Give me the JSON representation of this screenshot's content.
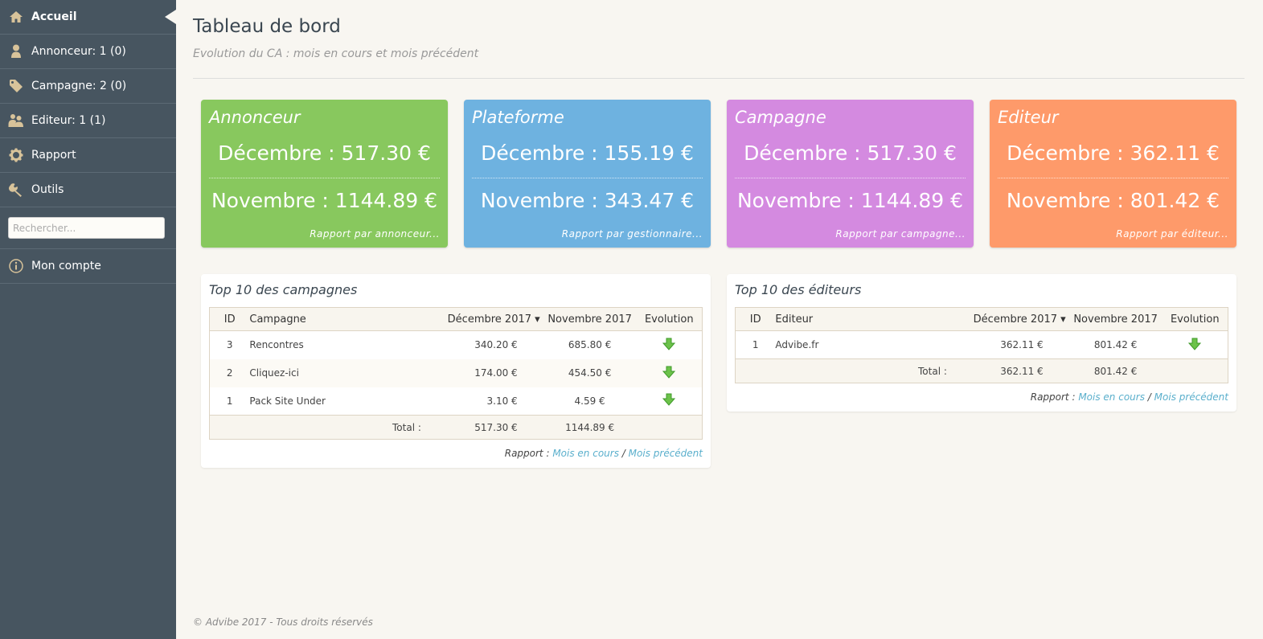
{
  "sidebar": {
    "items": [
      {
        "label": "Accueil",
        "icon": "home-icon"
      },
      {
        "label": "Annonceur: 1 (0)",
        "icon": "user-icon"
      },
      {
        "label": "Campagne: 2 (0)",
        "icon": "tag-icon"
      },
      {
        "label": "Editeur: 1 (1)",
        "icon": "users-icon"
      },
      {
        "label": "Rapport",
        "icon": "gear-icon"
      },
      {
        "label": "Outils",
        "icon": "wrench-icon"
      }
    ],
    "search_placeholder": "Rechercher...",
    "account": {
      "label": "Mon compte",
      "icon": "info-icon"
    }
  },
  "header": {
    "title": "Tableau de bord",
    "subtitle": "Evolution du CA : mois en cours et mois précédent"
  },
  "cards": [
    {
      "title": "Annonceur",
      "line1": "Décembre : 517.30 €",
      "line2": "Novembre : 1144.89 €",
      "link": "Rapport par annonceur...",
      "color": "#88c85e"
    },
    {
      "title": "Plateforme",
      "line1": "Décembre : 155.19 €",
      "line2": "Novembre : 343.47 €",
      "link": "Rapport par gestionnaire...",
      "color": "#6eb2e0"
    },
    {
      "title": "Campagne",
      "line1": "Décembre : 517.30 €",
      "line2": "Novembre : 1144.89 €",
      "link": "Rapport par campagne...",
      "color": "#d48ae0"
    },
    {
      "title": "Editeur",
      "line1": "Décembre : 362.11 €",
      "line2": "Novembre : 801.42 €",
      "link": "Rapport par éditeur...",
      "color": "#fe9a6a"
    }
  ],
  "campaigns": {
    "title": "Top 10 des campagnes",
    "columns": [
      "ID",
      "Campagne",
      "Décembre 2017 ▾",
      "Novembre 2017",
      "Evolution"
    ],
    "rows": [
      {
        "id": "3",
        "name": "Rencontres",
        "dec": "340.20 €",
        "nov": "685.80 €"
      },
      {
        "id": "2",
        "name": "Cliquez-ici",
        "dec": "174.00 €",
        "nov": "454.50 €"
      },
      {
        "id": "1",
        "name": "Pack Site Under",
        "dec": "3.10 €",
        "nov": "4.59 €"
      }
    ],
    "total_label": "Total :",
    "total_dec": "517.30 €",
    "total_nov": "1144.89 €"
  },
  "editors": {
    "title": "Top 10 des éditeurs",
    "columns": [
      "ID",
      "Editeur",
      "Décembre 2017 ▾",
      "Novembre 2017",
      "Evolution"
    ],
    "rows": [
      {
        "id": "1",
        "name": "Advibe.fr",
        "dec": "362.11 €",
        "nov": "801.42 €"
      }
    ],
    "total_label": "Total :",
    "total_dec": "362.11 €",
    "total_nov": "801.42 €"
  },
  "report_links": {
    "label": "Rapport :",
    "current": "Mois en cours",
    "sep": "/",
    "previous": "Mois précédent"
  },
  "footer": "© Advibe 2017 - Tous droits réservés",
  "colors": {
    "sidebar_bg": "#475560",
    "link": "#5aafcc",
    "arrow_down": "#6cc24a"
  }
}
